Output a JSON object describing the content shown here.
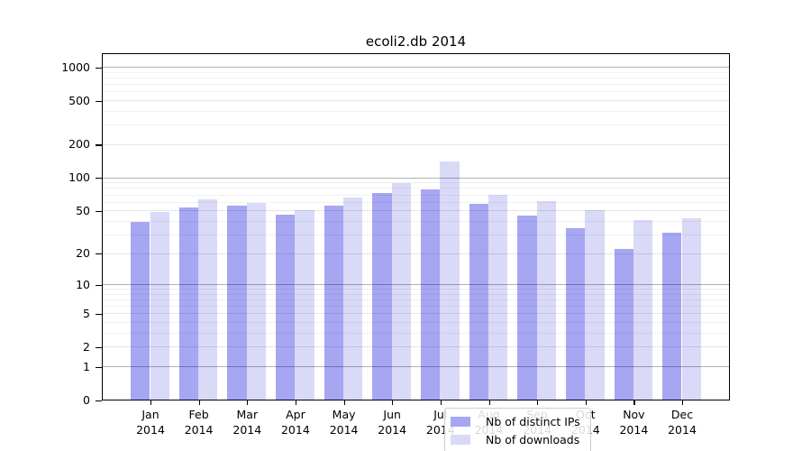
{
  "chart_data": {
    "type": "bar",
    "title": "ecoli2.db 2014",
    "categories": [
      "Jan\n2014",
      "Feb\n2014",
      "Mar\n2014",
      "Apr\n2014",
      "May\n2014",
      "Jun\n2014",
      "Jul\n2014",
      "Aug\n2014",
      "Sep\n2014",
      "Oct\n2014",
      "Nov\n2014",
      "Dec\n2014"
    ],
    "series": [
      {
        "name": "Nb of distinct IPs",
        "color": "#a6a6f2",
        "values": [
          39,
          53,
          55,
          46,
          55,
          72,
          78,
          57,
          45,
          34,
          22,
          31
        ]
      },
      {
        "name": "Nb of downloads",
        "color": "#d9d9f8",
        "values": [
          48,
          63,
          58,
          50,
          65,
          89,
          141,
          69,
          61,
          50,
          41,
          42
        ]
      }
    ],
    "xlabel": "",
    "ylabel": "",
    "y_axis": {
      "scale": "log10(value+1)",
      "top_value": 1300,
      "ticks": [
        {
          "value": 1000,
          "label": "1000"
        },
        {
          "value": 500,
          "label": "500"
        },
        {
          "value": 200,
          "label": "200"
        },
        {
          "value": 100,
          "label": "100"
        },
        {
          "value": 50,
          "label": "50"
        },
        {
          "value": 20,
          "label": "20"
        },
        {
          "value": 10,
          "label": "10"
        },
        {
          "value": 5,
          "label": "5"
        },
        {
          "value": 2,
          "label": "2"
        },
        {
          "value": 1,
          "label": "1"
        },
        {
          "value": 0,
          "label": "0"
        }
      ],
      "decade_gridlines": [
        1,
        10,
        100,
        1000
      ],
      "minor_gridlines": [
        3,
        4,
        6,
        7,
        8,
        9,
        30,
        40,
        60,
        70,
        80,
        90,
        300,
        400,
        600,
        700,
        800,
        900
      ]
    },
    "grid": true,
    "legend_position": "bottom-center"
  },
  "legend": {
    "entries": [
      "Nb of distinct IPs",
      "Nb of downloads"
    ]
  },
  "colors": {
    "bar_distinct_ips": "#a6a6f2",
    "bar_downloads": "#d9d9f8",
    "axis_border": "#000000",
    "grid_decade": "#b3b3b3",
    "grid_labeled": "#e6e6e6",
    "grid_minor": "#f1f1f1",
    "legend_border": "#cccccc",
    "background": "#ffffff"
  }
}
